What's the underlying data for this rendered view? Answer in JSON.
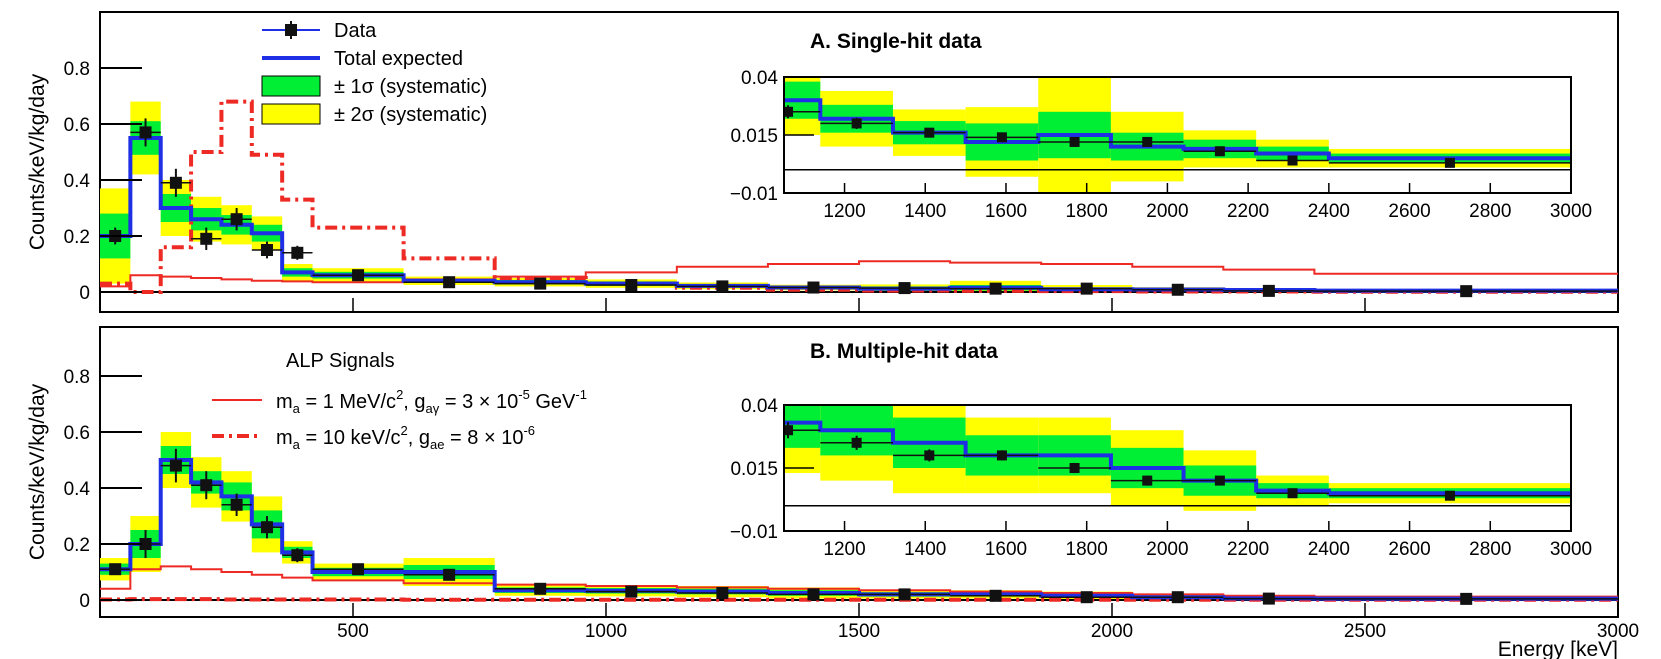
{
  "chart_data": {
    "type": "histogram",
    "xlabel": "Energy [keV]",
    "ylabel": "Counts/keV/kg/day",
    "xlim": [
      0,
      3000
    ],
    "x_ticks": [
      500,
      1000,
      1500,
      2000,
      2500,
      3000
    ],
    "legend_top": {
      "data": "Data",
      "total": "Total expected",
      "sys1": "± 1σ (systematic)",
      "sys2": "± 2σ (systematic)"
    },
    "legend_alp": {
      "title": "ALP Signals",
      "red_solid": {
        "pre": "m",
        "sub": "a",
        "mid": " = 1 MeV/c",
        "sup": "2",
        "post": ",   g",
        "coupling_sub": "aγ",
        "value": " = 3   × 10",
        "exp": "-5",
        "unit": " GeV",
        "unit_exp": "-1"
      },
      "red_dash": {
        "pre": "m",
        "sub": "a",
        "mid": " = 10 keV/c",
        "sup": "2",
        "post": ",   g",
        "coupling_sub": "ae",
        "value": " = 8   × 10",
        "exp": "-6"
      }
    },
    "colors": {
      "data": "#111111",
      "total": "#1f2fe6",
      "band1": "#00ee33",
      "band2": "#ffff00",
      "signal": "#ee2a24"
    },
    "panels": [
      {
        "title": "A. Single-hit data",
        "ylim": [
          0,
          1.0
        ],
        "y_ticks": [
          0,
          0.2,
          0.4,
          0.6,
          0.8
        ],
        "y_tick_labels": [
          "0",
          "0.2",
          "0.4",
          "0.6",
          "0.8"
        ],
        "edges": [
          0,
          60,
          120,
          180,
          240,
          300,
          360,
          420,
          600,
          780,
          960,
          1140,
          1320,
          1500,
          1680,
          1860,
          2040,
          2220,
          2400,
          3000
        ],
        "total": [
          0.2,
          0.55,
          0.3,
          0.26,
          0.24,
          0.21,
          0.07,
          0.06,
          0.04,
          0.035,
          0.03,
          0.022,
          0.016,
          0.012,
          0.015,
          0.01,
          0.009,
          0.007,
          0.005
        ],
        "band1": [
          0.08,
          0.06,
          0.05,
          0.04,
          0.035,
          0.03,
          0.015,
          0.012,
          0.008,
          0.008,
          0.008,
          0.006,
          0.005,
          0.008,
          0.01,
          0.006,
          0.004,
          0.003,
          0.002
        ],
        "band2": [
          0.17,
          0.13,
          0.1,
          0.08,
          0.07,
          0.06,
          0.03,
          0.025,
          0.015,
          0.015,
          0.015,
          0.012,
          0.01,
          0.015,
          0.025,
          0.015,
          0.008,
          0.006,
          0.004
        ],
        "data_x": [
          30,
          90,
          150,
          210,
          270,
          330,
          390,
          510,
          690,
          870,
          1050,
          1230,
          1410,
          1590,
          1770,
          1950,
          2130,
          2310,
          2700
        ],
        "data_y": [
          0.2,
          0.57,
          0.39,
          0.19,
          0.26,
          0.15,
          0.14,
          0.06,
          0.035,
          0.03,
          0.025,
          0.02,
          0.016,
          0.014,
          0.012,
          0.012,
          0.008,
          0.004,
          0.003
        ],
        "data_err": [
          0.03,
          0.05,
          0.05,
          0.04,
          0.04,
          0.03,
          0.025,
          0.01,
          0.008,
          0.007,
          0.007,
          0.006,
          0.005,
          0.005,
          0.005,
          0.005,
          0.004,
          0.003,
          0.002
        ],
        "signal_solid": {
          "edges": [
            0,
            60,
            120,
            180,
            240,
            300,
            360,
            420,
            600,
            780,
            960,
            1140,
            1320,
            1500,
            1680,
            1860,
            2040,
            2220,
            2400,
            3000
          ],
          "values": [
            0.02,
            0.06,
            0.055,
            0.05,
            0.045,
            0.04,
            0.038,
            0.035,
            0.045,
            0.055,
            0.07,
            0.09,
            0.1,
            0.11,
            0.105,
            0.1,
            0.09,
            0.08,
            0.065,
            0.06
          ]
        },
        "signal_dash": {
          "edges": [
            0,
            60,
            120,
            180,
            240,
            300,
            360,
            420,
            600,
            780,
            960,
            1140,
            1320,
            1500,
            1680,
            1860,
            2040,
            2220,
            2400,
            3000
          ],
          "values": [
            0.03,
            0.0,
            0.16,
            0.5,
            0.68,
            0.49,
            0.33,
            0.23,
            0.12,
            0.05,
            0.03,
            0.015,
            0.008,
            0.005,
            0.004,
            0.003,
            0.002,
            0.002,
            0.001,
            0.001
          ]
        },
        "inset": {
          "xlim": [
            1050,
            3000
          ],
          "ylim": [
            -0.01,
            0.04
          ],
          "y_ticks": [
            -0.01,
            0.015,
            0.04
          ],
          "y_tick_labels": [
            "−0.01",
            "0.015",
            "0.04"
          ],
          "x_ticks": [
            1200,
            1400,
            1600,
            1800,
            2000,
            2200,
            2400,
            2600,
            2800,
            3000
          ]
        }
      },
      {
        "title": "B. Multiple-hit data",
        "ylim": [
          0,
          1.0
        ],
        "y_ticks": [
          0,
          0.2,
          0.4,
          0.6,
          0.8
        ],
        "y_tick_labels": [
          "0",
          "0.2",
          "0.4",
          "0.6",
          "0.8"
        ],
        "edges": [
          0,
          60,
          120,
          180,
          240,
          300,
          360,
          420,
          600,
          780,
          960,
          1140,
          1320,
          1500,
          1680,
          1860,
          2040,
          2220,
          2400,
          3000
        ],
        "total": [
          0.11,
          0.2,
          0.5,
          0.42,
          0.37,
          0.27,
          0.17,
          0.1,
          0.1,
          0.035,
          0.033,
          0.03,
          0.025,
          0.02,
          0.02,
          0.015,
          0.01,
          0.006,
          0.005
        ],
        "band1": [
          0.02,
          0.05,
          0.05,
          0.04,
          0.05,
          0.05,
          0.02,
          0.015,
          0.025,
          0.01,
          0.01,
          0.01,
          0.01,
          0.008,
          0.008,
          0.008,
          0.006,
          0.003,
          0.002
        ],
        "band2": [
          0.04,
          0.1,
          0.1,
          0.09,
          0.09,
          0.1,
          0.04,
          0.03,
          0.05,
          0.02,
          0.02,
          0.02,
          0.02,
          0.015,
          0.015,
          0.015,
          0.012,
          0.006,
          0.004
        ],
        "data_x": [
          30,
          90,
          150,
          210,
          270,
          330,
          390,
          510,
          690,
          870,
          1050,
          1230,
          1410,
          1590,
          1770,
          1950,
          2130,
          2310,
          2700
        ],
        "data_y": [
          0.11,
          0.2,
          0.48,
          0.41,
          0.34,
          0.26,
          0.16,
          0.11,
          0.09,
          0.04,
          0.03,
          0.025,
          0.02,
          0.02,
          0.015,
          0.01,
          0.01,
          0.005,
          0.004
        ],
        "data_err": [
          0.02,
          0.05,
          0.06,
          0.05,
          0.04,
          0.04,
          0.025,
          0.015,
          0.015,
          0.008,
          0.008,
          0.007,
          0.006,
          0.005,
          0.005,
          0.005,
          0.004,
          0.003,
          0.002
        ],
        "signal_solid": {
          "edges": [
            0,
            60,
            120,
            180,
            240,
            300,
            360,
            420,
            600,
            780,
            960,
            1140,
            1320,
            1500,
            1680,
            1860,
            2040,
            2220,
            2400,
            3000
          ],
          "values": [
            0.04,
            0.11,
            0.12,
            0.11,
            0.1,
            0.09,
            0.08,
            0.07,
            0.06,
            0.055,
            0.05,
            0.045,
            0.04,
            0.035,
            0.03,
            0.025,
            0.02,
            0.015,
            0.012,
            0.01
          ]
        },
        "signal_dash": {
          "edges": [
            0,
            60,
            120,
            180,
            240,
            300,
            360,
            420,
            600,
            780,
            960,
            1140,
            1320,
            1500,
            1680,
            1860,
            2040,
            2220,
            2400,
            3000
          ],
          "values": [
            0.002,
            0.003,
            0.003,
            0.003,
            0.002,
            0.002,
            0.002,
            0.002,
            0.001,
            0.001,
            0.001,
            0.001,
            0.001,
            0.001,
            0.001,
            0.001,
            0.001,
            0.001,
            0.001,
            0.001
          ]
        },
        "inset": {
          "xlim": [
            1050,
            3000
          ],
          "ylim": [
            -0.01,
            0.04
          ],
          "y_ticks": [
            -0.01,
            0.015,
            0.04
          ],
          "y_tick_labels": [
            "−0.01",
            "0.015",
            "0.04"
          ],
          "x_ticks": [
            1200,
            1400,
            1600,
            1800,
            2000,
            2200,
            2400,
            2600,
            2800,
            3000
          ]
        }
      }
    ]
  }
}
